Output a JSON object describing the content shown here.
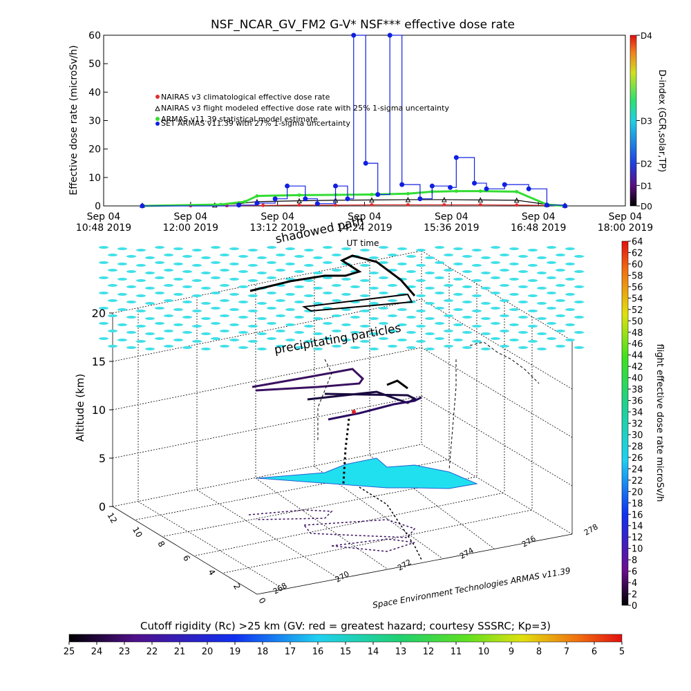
{
  "colors": {
    "nairas_clim": "#e03030",
    "nairas_flight": "#000000",
    "armas_stat": "#33dd33",
    "set_armas": "#1020e0",
    "cloud": "#40e0e8"
  },
  "chart_data": [
    {
      "type": "line",
      "title": "NSF_NCAR_GV_FM2 G-V* NSF*** effective dose rate",
      "xlabel": "UT time",
      "ylabel": "Effective dose rate (microSv/h)",
      "ylim": [
        0,
        60
      ],
      "yticks": [
        "0",
        "10",
        "20",
        "30",
        "40",
        "50",
        "60"
      ],
      "xticks": [
        {
          "l1": "Sep 04",
          "l2": "10:48 2019"
        },
        {
          "l1": "Sep 04",
          "l2": "12:00 2019"
        },
        {
          "l1": "Sep 04",
          "l2": "13:12 2019"
        },
        {
          "l1": "Sep 04",
          "l2": "14:24 2019"
        },
        {
          "l1": "Sep 04",
          "l2": "15:36 2019"
        },
        {
          "l1": "Sep 04",
          "l2": "16:48 2019"
        },
        {
          "l1": "Sep 04",
          "l2": "18:00 2019"
        }
      ],
      "legend": [
        "NAIRAS v3 climatological effective dose rate",
        "NAIRAS v3 flight modeled effective dose rate with 25% 1-sigma uncertainty",
        "ARMAS v11.39 statistical model estimate",
        "SET ARMAS v11.39 with 27% 1-sigma uncertainty"
      ],
      "right_axis": {
        "label": "D-index (GCR,solar,TP)",
        "ticks": [
          "D0",
          "D1",
          "D2",
          "D3",
          "D4"
        ]
      },
      "series": [
        {
          "name": "NAIRAS v3 climatological effective dose rate",
          "x": [
            "11:20",
            "12:00",
            "12:30",
            "13:00",
            "13:30",
            "14:00",
            "14:30",
            "15:00",
            "15:30",
            "16:00",
            "16:30",
            "16:55",
            "17:10"
          ],
          "values": [
            0.1,
            0.1,
            0.1,
            0.2,
            0.3,
            0.3,
            0.4,
            0.4,
            0.4,
            0.4,
            0.3,
            0.2,
            0.1
          ]
        },
        {
          "name": "NAIRAS v3 flight modeled effective dose rate with 25% 1-sigma uncertainty",
          "x": [
            "11:20",
            "12:20",
            "12:40",
            "12:55",
            "13:30",
            "14:00",
            "14:30",
            "15:00",
            "15:30",
            "16:00",
            "16:30",
            "16:55",
            "17:10"
          ],
          "values": [
            0.2,
            0.3,
            0.8,
            1.5,
            1.8,
            2.0,
            2.1,
            2.2,
            2.2,
            2.1,
            2.0,
            0.5,
            0.2
          ]
        },
        {
          "name": "ARMAS v11.39 statistical model estimate",
          "x": [
            "11:20",
            "12:25",
            "12:45",
            "12:55",
            "13:30",
            "14:00",
            "14:30",
            "15:00",
            "15:20",
            "15:40",
            "16:00",
            "16:30",
            "16:55",
            "17:10"
          ],
          "values": [
            0.0,
            0.5,
            1.5,
            3.5,
            3.8,
            3.9,
            4.0,
            4.3,
            5.0,
            5.2,
            5.2,
            5.0,
            0.5,
            0.0
          ]
        },
        {
          "name": "SET ARMAS v11.39 with 27% 1-sigma uncertainty",
          "x": [
            "11:20",
            "12:40",
            "12:55",
            "13:10",
            "13:20",
            "13:35",
            "13:45",
            "14:00",
            "14:10",
            "14:15",
            "14:25",
            "14:35",
            "14:45",
            "14:55",
            "15:10",
            "15:20",
            "15:35",
            "15:40",
            "15:55",
            "16:05",
            "16:20",
            "16:40",
            "16:55",
            "17:10"
          ],
          "values": [
            0.0,
            0.3,
            1.0,
            2.5,
            7.0,
            2.5,
            0.8,
            7.0,
            2.5,
            60,
            15,
            4.0,
            60,
            7.5,
            2.5,
            7.0,
            6.5,
            17.0,
            8.0,
            6.0,
            7.5,
            6.0,
            0.3,
            0.0
          ]
        }
      ]
    },
    {
      "type": "scatter",
      "title": "",
      "zlabel": "Altitude (km)",
      "zlim": [
        0,
        20
      ],
      "zticks": [
        "0",
        "5",
        "10",
        "15",
        "20"
      ],
      "left_ticks": [
        "12",
        "10",
        "8",
        "6",
        "4",
        "2",
        "0"
      ],
      "right_ticks": [
        "268",
        "270",
        "272",
        "274",
        "276",
        "278"
      ],
      "annotations": [
        "shadowed path",
        "precipitating particles"
      ],
      "credit": "Space Environment Technologies ARMAS v11.39",
      "colorbar": {
        "label": "flight effective dose rate microSv/h",
        "ticks": [
          "0",
          "2",
          "4",
          "6",
          "8",
          "10",
          "12",
          "14",
          "16",
          "18",
          "20",
          "22",
          "24",
          "26",
          "28",
          "30",
          "32",
          "34",
          "36",
          "38",
          "40",
          "42",
          "44",
          "46",
          "48",
          "50",
          "52",
          "54",
          "56",
          "58",
          "60",
          "62",
          "64"
        ]
      }
    },
    {
      "type": "heatmap",
      "title": "Cutoff rigidity (Rc) >25 km (GV: red = greatest hazard; courtesy SSSRC; Kp=3)",
      "ticks": [
        "25",
        "24",
        "23",
        "22",
        "21",
        "20",
        "19",
        "18",
        "17",
        "16",
        "15",
        "14",
        "13",
        "12",
        "11",
        "10",
        "9",
        "8",
        "7",
        "6",
        "5"
      ]
    }
  ]
}
